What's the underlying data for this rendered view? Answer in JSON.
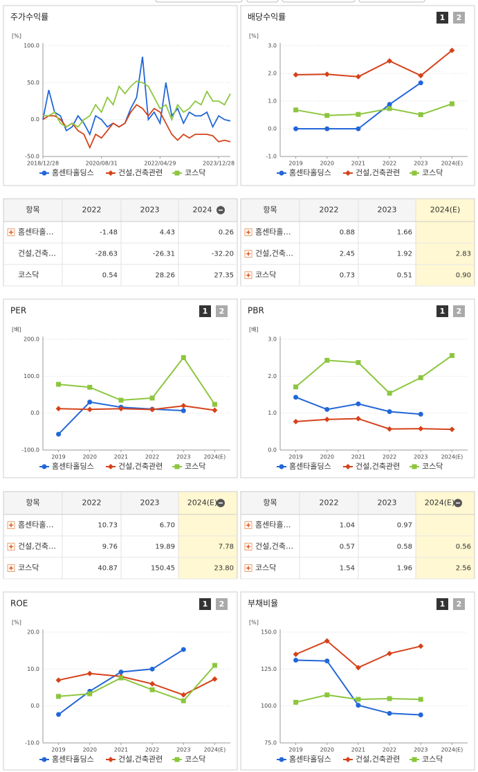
{
  "chart_data": [
    {
      "type": "line",
      "title": "주가수익률",
      "unit": "[%]",
      "grid": true,
      "markers": false,
      "categories": [
        "2018/12/28",
        null,
        null,
        null,
        null,
        null,
        null,
        null,
        null,
        null,
        "2020/08/31",
        null,
        null,
        null,
        null,
        null,
        null,
        null,
        null,
        null,
        "2022/04/29",
        null,
        null,
        null,
        null,
        null,
        null,
        null,
        null,
        null,
        "2023/12/28",
        null,
        null
      ],
      "ylim": [
        -50,
        100
      ],
      "yticks": [
        {
          "value": 100,
          "label": "100.0"
        },
        {
          "value": 50,
          "label": "50.0"
        },
        {
          "value": 0,
          "label": "0.0"
        },
        {
          "value": -50,
          "label": "-50.0"
        }
      ],
      "series": [
        {
          "name": "홈센타홀딩스",
          "color": "#2266d8",
          "marker": "circle",
          "values": [
            0,
            40,
            10,
            5,
            -15,
            -10,
            5,
            -5,
            -20,
            5,
            0,
            -10,
            -5,
            -10,
            -5,
            15,
            30,
            85,
            0,
            10,
            -5,
            50,
            5,
            15,
            -5,
            10,
            5,
            5,
            10,
            -10,
            5,
            0,
            -2
          ]
        },
        {
          "name": "건설,건축관련",
          "color": "#d5421a",
          "marker": "diamond",
          "values": [
            0,
            5,
            5,
            0,
            -10,
            -5,
            -15,
            -20,
            -38,
            -20,
            -25,
            -15,
            -5,
            -10,
            -5,
            10,
            20,
            15,
            5,
            15,
            10,
            -5,
            -20,
            -28,
            -20,
            -25,
            -20,
            -20,
            -20,
            -22,
            -30,
            -28,
            -30
          ]
        },
        {
          "name": "코스닥",
          "color": "#8cc63e",
          "marker": "square",
          "values": [
            5,
            5,
            10,
            -5,
            -10,
            -5,
            -10,
            0,
            5,
            20,
            10,
            30,
            20,
            45,
            35,
            45,
            52,
            50,
            45,
            30,
            15,
            20,
            0,
            20,
            10,
            15,
            25,
            20,
            38,
            25,
            25,
            20,
            35
          ]
        }
      ]
    },
    {
      "type": "line",
      "title": "배당수익률",
      "pager": [
        "1",
        "2"
      ],
      "unit": "[%]",
      "grid": true,
      "markers": true,
      "categories": [
        "2019",
        "2020",
        "2021",
        "2022",
        "2023",
        "2024(E)"
      ],
      "ylim": [
        -1,
        3
      ],
      "yticks": [
        {
          "value": 3,
          "label": "3.0"
        },
        {
          "value": 2,
          "label": "2.0"
        },
        {
          "value": 1,
          "label": "1.0"
        },
        {
          "value": 0,
          "label": "0.0"
        },
        {
          "value": -1,
          "label": "-1.0"
        }
      ],
      "series": [
        {
          "name": "홈센타홀딩스",
          "color": "#2266d8",
          "marker": "circle",
          "values": [
            0,
            0,
            0,
            0.88,
            1.66,
            null
          ]
        },
        {
          "name": "건설,건축관련",
          "color": "#d5421a",
          "marker": "diamond",
          "values": [
            1.95,
            1.97,
            1.88,
            2.45,
            1.92,
            2.83
          ]
        },
        {
          "name": "코스닥",
          "color": "#8cc63e",
          "marker": "square",
          "values": [
            0.68,
            0.48,
            0.52,
            0.73,
            0.51,
            0.9
          ]
        }
      ]
    },
    {
      "type": "line",
      "title": "PER",
      "pager": [
        "1",
        "2"
      ],
      "unit": "[배]",
      "grid": true,
      "markers": true,
      "categories": [
        "2019",
        "2020",
        "2021",
        "2022",
        "2023",
        "2024(E)"
      ],
      "ylim": [
        -100,
        200
      ],
      "yticks": [
        {
          "value": 200,
          "label": "200.0"
        },
        {
          "value": 100,
          "label": "100.0"
        },
        {
          "value": 0,
          "label": "0.0"
        },
        {
          "value": -100,
          "label": "-100.0"
        }
      ],
      "series": [
        {
          "name": "홈센타홀딩스",
          "color": "#2266d8",
          "marker": "circle",
          "values": [
            -57,
            30,
            16,
            10.73,
            6.7,
            null
          ]
        },
        {
          "name": "건설,건축관련",
          "color": "#d5421a",
          "marker": "diamond",
          "values": [
            12,
            10,
            12,
            9.76,
            19.89,
            7.78
          ]
        },
        {
          "name": "코스닥",
          "color": "#8cc63e",
          "marker": "square",
          "values": [
            78,
            70,
            35,
            40.87,
            150.45,
            23.8
          ]
        }
      ]
    },
    {
      "type": "line",
      "title": "PBR",
      "pager": [
        "1",
        "2"
      ],
      "unit": "[배]",
      "grid": true,
      "markers": true,
      "categories": [
        "2019",
        "2020",
        "2021",
        "2022",
        "2023",
        "2024(E)"
      ],
      "ylim": [
        0,
        3
      ],
      "yticks": [
        {
          "value": 3,
          "label": "3.0"
        },
        {
          "value": 2,
          "label": "2.0"
        },
        {
          "value": 1,
          "label": "1.0"
        },
        {
          "value": 0,
          "label": "0.0"
        }
      ],
      "series": [
        {
          "name": "홈센타홀딩스",
          "color": "#2266d8",
          "marker": "circle",
          "values": [
            1.43,
            1.1,
            1.25,
            1.04,
            0.97,
            null
          ]
        },
        {
          "name": "건설,건축관련",
          "color": "#d5421a",
          "marker": "diamond",
          "values": [
            0.77,
            0.83,
            0.85,
            0.57,
            0.58,
            0.56
          ]
        },
        {
          "name": "코스닥",
          "color": "#8cc63e",
          "marker": "square",
          "values": [
            1.71,
            2.43,
            2.37,
            1.54,
            1.96,
            2.56
          ]
        }
      ]
    },
    {
      "type": "line",
      "title": "ROE",
      "pager": [
        "1",
        "2"
      ],
      "unit": "[%]",
      "grid": true,
      "markers": true,
      "categories": [
        "2019",
        "2020",
        "2021",
        "2022",
        "2023",
        "2024(E)"
      ],
      "ylim": [
        -10,
        20
      ],
      "yticks": [
        {
          "value": 20,
          "label": "20.0"
        },
        {
          "value": 10,
          "label": "10.0"
        },
        {
          "value": 0,
          "label": "0.0"
        },
        {
          "value": -10,
          "label": "-10.0"
        }
      ],
      "series": [
        {
          "name": "홈센타홀딩스",
          "color": "#2266d8",
          "marker": "circle",
          "values": [
            -2.3,
            4,
            9.2,
            10,
            15.3,
            null
          ]
        },
        {
          "name": "건설,건축관련",
          "color": "#d5421a",
          "marker": "diamond",
          "values": [
            7,
            8.8,
            8,
            6,
            3,
            7.3
          ]
        },
        {
          "name": "코스닥",
          "color": "#8cc63e",
          "marker": "square",
          "values": [
            2.6,
            3.3,
            7.6,
            4.4,
            1.4,
            11
          ]
        }
      ]
    },
    {
      "type": "line",
      "title": "부채비율",
      "pager": [
        "1",
        "2"
      ],
      "unit": "[%]",
      "grid": true,
      "markers": true,
      "categories": [
        "2019",
        "2020",
        "2021",
        "2022",
        "2023",
        "2024(E)"
      ],
      "ylim": [
        75,
        150
      ],
      "yticks": [
        {
          "value": 150,
          "label": "150.0"
        },
        {
          "value": 125,
          "label": "125.0"
        },
        {
          "value": 100,
          "label": "100.0"
        },
        {
          "value": 75,
          "label": "75.0"
        }
      ],
      "series": [
        {
          "name": "홈센타홀딩스",
          "color": "#2266d8",
          "marker": "circle",
          "values": [
            131,
            130.5,
            100.5,
            95,
            94,
            null
          ]
        },
        {
          "name": "건설,건축관련",
          "color": "#d5421a",
          "marker": "diamond",
          "values": [
            135,
            144,
            126,
            135.5,
            140.5,
            null
          ]
        },
        {
          "name": "코스닥",
          "color": "#8cc63e",
          "marker": "square",
          "values": [
            102.5,
            107.5,
            104.5,
            105,
            104.5,
            null
          ]
        }
      ]
    }
  ],
  "tables": [
    {
      "header": [
        "항목",
        "2022",
        "2023",
        "2024"
      ],
      "collapsible": true,
      "rows": [
        {
          "name": "홈센타홀…",
          "expandable": true,
          "cells": [
            "-1.48",
            "4.43",
            "0.26"
          ]
        },
        {
          "name": "건설,건축…",
          "expandable": false,
          "cells": [
            "-28.63",
            "-26.31",
            "-32.20"
          ]
        },
        {
          "name": "코스닥",
          "expandable": false,
          "cells": [
            "0.54",
            "28.26",
            "27.35"
          ]
        }
      ]
    },
    {
      "header": [
        "항목",
        "2022",
        "2023",
        "2024(E)"
      ],
      "collapsible": false,
      "highlight_color": "#fff8d2",
      "rows": [
        {
          "name": "홈센타홀…",
          "expandable": true,
          "cells": [
            "0.88",
            "1.66",
            null
          ]
        },
        {
          "name": "건설,건축…",
          "expandable": true,
          "cells": [
            "2.45",
            "1.92",
            "2.83"
          ]
        },
        {
          "name": "코스닥",
          "expandable": true,
          "cells": [
            "0.73",
            "0.51",
            "0.90"
          ]
        }
      ]
    },
    {
      "header": [
        "항목",
        "2022",
        "2023",
        "2024(E)"
      ],
      "collapsible": true,
      "highlight_color": "#fff8d2",
      "rows": [
        {
          "name": "홈센타홀…",
          "expandable": true,
          "cells": [
            "10.73",
            "6.70",
            null
          ]
        },
        {
          "name": "건설,건축…",
          "expandable": true,
          "cells": [
            "9.76",
            "19.89",
            "7.78"
          ]
        },
        {
          "name": "코스닥",
          "expandable": true,
          "cells": [
            "40.87",
            "150.45",
            "23.80"
          ]
        }
      ]
    },
    {
      "header": [
        "항목",
        "2022",
        "2023",
        "2024(E)"
      ],
      "collapsible": true,
      "highlight_color": "#fff8d2",
      "rows": [
        {
          "name": "홈센타홀…",
          "expandable": true,
          "cells": [
            "1.04",
            "0.97",
            null
          ]
        },
        {
          "name": "건설,건축…",
          "expandable": true,
          "cells": [
            "0.57",
            "0.58",
            "0.56"
          ]
        },
        {
          "name": "코스닥",
          "expandable": true,
          "cells": [
            "1.54",
            "1.96",
            "2.56"
          ]
        }
      ]
    }
  ]
}
